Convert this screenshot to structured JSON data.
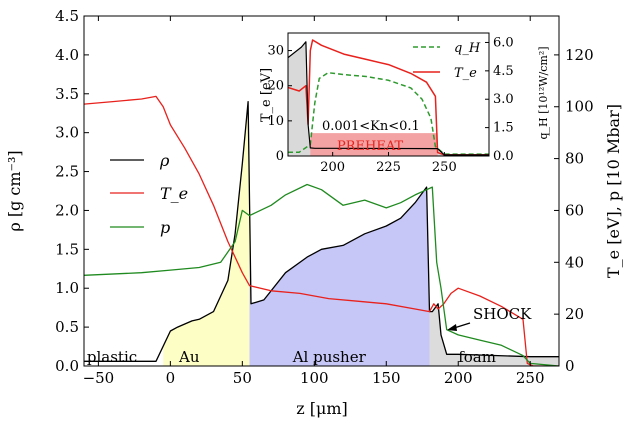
{
  "chart_data": [
    {
      "type": "line",
      "xlabel": "z [μm]",
      "ylabel_left": "ρ [g cm⁻³]",
      "ylabel_right": "T_e [eV], p [10 Mbar]",
      "xlim": [
        -60,
        270
      ],
      "ylim_left": [
        0,
        4.5
      ],
      "ylim_right": [
        0,
        135
      ],
      "x_ticks": [
        "−50",
        "0",
        "50",
        "100",
        "150",
        "200",
        "250"
      ],
      "y_ticks_left": [
        "0.0",
        "0.5",
        "1.0",
        "1.5",
        "2.0",
        "2.5",
        "3.0",
        "3.5",
        "4.0",
        "4.5"
      ],
      "y_ticks_right": [
        "0",
        "20",
        "40",
        "60",
        "80",
        "100",
        "120"
      ],
      "legend": {
        "placement": "center-left",
        "entries": [
          "ρ",
          "T_e",
          "p"
        ]
      },
      "regions": [
        {
          "label": "plastic",
          "from": -60,
          "to": 55,
          "fill": "#ffffff"
        },
        {
          "label": "Au",
          "from": -5,
          "to": 55,
          "fill": "#fdfdc6"
        },
        {
          "label": "Al pusher",
          "from": 55,
          "to": 180,
          "fill": "#c6c6f7"
        },
        {
          "label": "foam",
          "from": 180,
          "to": 270,
          "fill": "#dcdcdc"
        }
      ],
      "annotations": [
        "SHOCK"
      ],
      "series": [
        {
          "name": "ρ",
          "axis": "left",
          "color": "#000000",
          "x": [
            -60,
            -10,
            0,
            5,
            15,
            20,
            30,
            40,
            45,
            50,
            54,
            56,
            65,
            80,
            95,
            105,
            120,
            135,
            150,
            160,
            170,
            178,
            180,
            182,
            186,
            188,
            192,
            200,
            250,
            270
          ],
          "y": [
            0.06,
            0.06,
            0.45,
            0.5,
            0.58,
            0.6,
            0.7,
            1.1,
            1.7,
            2.6,
            3.4,
            0.8,
            0.85,
            1.2,
            1.4,
            1.5,
            1.55,
            1.7,
            1.8,
            1.9,
            2.1,
            2.3,
            0.7,
            0.7,
            0.8,
            0.4,
            0.15,
            0.15,
            0.12,
            0.12
          ]
        },
        {
          "name": "T_e",
          "axis": "right",
          "color": "#e8211c",
          "x": [
            -60,
            -40,
            -20,
            -10,
            -5,
            0,
            10,
            20,
            30,
            40,
            50,
            55,
            70,
            90,
            110,
            130,
            150,
            170,
            180,
            183,
            186,
            190,
            195,
            200,
            215,
            230,
            245,
            248,
            252,
            270
          ],
          "y": [
            101,
            102,
            103,
            104,
            100,
            93,
            84,
            74,
            62,
            48,
            36,
            31,
            29,
            28,
            26,
            25,
            24,
            22,
            21,
            24,
            22,
            24,
            28,
            30,
            27,
            23,
            18,
            1,
            0,
            0
          ]
        },
        {
          "name": "p",
          "axis": "right",
          "color": "#1f8a1f",
          "x": [
            -60,
            -20,
            0,
            20,
            35,
            45,
            50,
            55,
            70,
            80,
            95,
            105,
            120,
            135,
            150,
            160,
            170,
            178,
            182,
            185,
            188,
            192,
            200,
            215,
            230,
            245,
            250,
            270
          ],
          "y": [
            35,
            36,
            37,
            38,
            40,
            48,
            60,
            58,
            62,
            66,
            70,
            68,
            62,
            64,
            61,
            63,
            66,
            68,
            69,
            40,
            30,
            14,
            12,
            10,
            8,
            4,
            1,
            0
          ]
        }
      ]
    },
    {
      "type": "line",
      "xlabel": "",
      "ylabel_left": "T_e [eV]",
      "ylabel_right": "q_H [10¹²W/cm²]",
      "xlim": [
        180,
        270
      ],
      "ylim_left": [
        0,
        35
      ],
      "ylim_right": [
        0,
        6.5
      ],
      "x_ticks": [
        "200",
        "225",
        "250"
      ],
      "y_ticks_left": [
        "0",
        "10",
        "20",
        "30"
      ],
      "y_ticks_right": [
        "0.0",
        "1.5",
        "3.0",
        "4.5",
        "6.0"
      ],
      "legend": {
        "placement": "top-right",
        "entries": [
          "q_H",
          "T_e"
        ]
      },
      "annotations": [
        "0.001<Kn<0.1",
        "PREHEAT"
      ],
      "series": [
        {
          "name": "q_H",
          "axis": "right",
          "color": "#2e9a2e",
          "style": "dashed",
          "x": [
            180,
            185,
            190,
            192,
            194,
            198,
            205,
            215,
            225,
            235,
            240,
            244,
            246,
            250,
            270
          ],
          "y": [
            0.2,
            0.2,
            0.6,
            2.8,
            4.1,
            4.4,
            4.3,
            4.2,
            4.0,
            3.6,
            3.0,
            2.0,
            0.5,
            0.1,
            0.1
          ]
        },
        {
          "name": "T_e",
          "axis": "left",
          "color": "#e8211c",
          "x": [
            180,
            185,
            188,
            189,
            190,
            191,
            195,
            205,
            215,
            225,
            235,
            242,
            246,
            247,
            250,
            270
          ],
          "y": [
            19.5,
            18.5,
            20,
            9,
            30,
            33,
            31.5,
            29,
            27.5,
            26,
            23.5,
            21,
            17,
            1,
            0.3,
            0.3
          ]
        },
        {
          "name": "ρ",
          "axis": "left",
          "color": "#000000",
          "x": [
            180,
            186,
            188,
            189,
            190,
            192,
            200,
            247,
            250,
            270
          ],
          "y": [
            28,
            31,
            32.5,
            9,
            2.3,
            2.2,
            2.2,
            2.1,
            0.3,
            0.3
          ]
        }
      ]
    }
  ]
}
